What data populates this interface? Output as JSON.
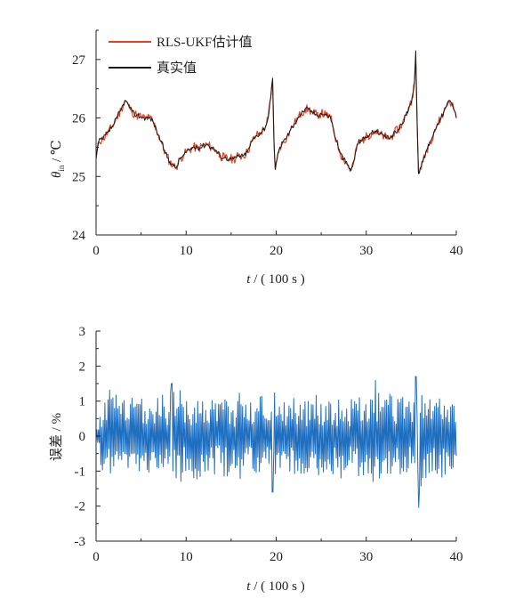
{
  "colors": {
    "estimate": "#e8401c",
    "true_value": "#1a1a1a",
    "error": "#1f6fc0",
    "axis": "#222222"
  },
  "chart_data": [
    {
      "type": "line",
      "ylabel_symbol": "θ",
      "ylabel_subscript": "in",
      "ylabel_unit": " / ℃",
      "xlabel_var": "t",
      "xlabel_unit": " / ( 100 s )",
      "xlim": [
        0,
        40
      ],
      "ylim": [
        24,
        27.5
      ],
      "xticks": [
        0,
        10,
        20,
        30,
        40
      ],
      "yticks": [
        24,
        25,
        26,
        27
      ],
      "legend_position": "top-left",
      "series": [
        {
          "name": "RLS-UKF估计值",
          "color": "#e8401c",
          "x": [
            0,
            0.3,
            0.8,
            1.3,
            1.8,
            2.3,
            2.8,
            3.2,
            3.6,
            4.0,
            4.5,
            5.0,
            5.5,
            6.0,
            6.3,
            6.7,
            7.2,
            7.7,
            8.2,
            8.6,
            8.9,
            9.3,
            9.8,
            10.3,
            10.8,
            11.3,
            11.8,
            12.3,
            12.8,
            13.3,
            13.8,
            14.3,
            14.8,
            15.3,
            15.8,
            16.3,
            16.8,
            17.3,
            17.8,
            18.3,
            18.8,
            19.1,
            19.4,
            19.6,
            19.75,
            19.9,
            20.1,
            20.4,
            20.8,
            21.2,
            21.6,
            22.0,
            22.4,
            22.8,
            23.2,
            23.6,
            24.0,
            24.5,
            25.0,
            25.5,
            26.0,
            26.3,
            26.7,
            27.1,
            27.5,
            27.9,
            28.3,
            28.7,
            29.0,
            29.4,
            29.8,
            30.2,
            30.6,
            31.0,
            31.5,
            32.0,
            32.5,
            33.0,
            33.5,
            34.0,
            34.4,
            34.8,
            35.1,
            35.35,
            35.5,
            35.65,
            35.8,
            36.0,
            36.3,
            36.7,
            37.1,
            37.5,
            37.9,
            38.3,
            38.6,
            38.9,
            39.2,
            39.5,
            39.8,
            40.0
          ],
          "y": [
            25.3,
            25.6,
            25.65,
            25.75,
            25.85,
            26.0,
            26.15,
            26.3,
            26.22,
            26.1,
            26.05,
            26.02,
            26.0,
            26.0,
            25.95,
            25.8,
            25.6,
            25.4,
            25.25,
            25.18,
            25.15,
            25.3,
            25.38,
            25.45,
            25.5,
            25.48,
            25.52,
            25.55,
            25.5,
            25.45,
            25.35,
            25.32,
            25.3,
            25.3,
            25.35,
            25.35,
            25.42,
            25.6,
            25.7,
            25.75,
            25.85,
            26.0,
            26.35,
            26.6,
            25.6,
            25.12,
            25.3,
            25.5,
            25.6,
            25.68,
            25.8,
            25.9,
            26.0,
            26.08,
            26.15,
            26.15,
            26.1,
            26.05,
            26.08,
            26.05,
            26.02,
            25.85,
            25.6,
            25.4,
            25.3,
            25.2,
            25.1,
            25.3,
            25.55,
            25.62,
            25.65,
            25.7,
            25.75,
            25.78,
            25.72,
            25.68,
            25.65,
            25.72,
            25.8,
            25.9,
            26.05,
            26.2,
            26.35,
            26.6,
            27.0,
            25.9,
            25.05,
            25.15,
            25.25,
            25.45,
            25.6,
            25.75,
            25.9,
            26.0,
            26.1,
            26.2,
            26.3,
            26.25,
            26.12,
            26.0
          ]
        },
        {
          "name": "真实值",
          "color": "#1a1a1a",
          "x": [
            0,
            0.3,
            0.8,
            1.3,
            1.8,
            2.3,
            2.8,
            3.2,
            3.6,
            4.0,
            4.5,
            5.0,
            5.5,
            6.0,
            6.3,
            6.7,
            7.2,
            7.7,
            8.2,
            8.6,
            8.9,
            9.3,
            9.8,
            10.3,
            10.8,
            11.3,
            11.8,
            12.3,
            12.8,
            13.3,
            13.8,
            14.3,
            14.8,
            15.3,
            15.8,
            16.3,
            16.8,
            17.3,
            17.8,
            18.3,
            18.8,
            19.1,
            19.4,
            19.6,
            19.75,
            19.9,
            20.1,
            20.4,
            20.8,
            21.2,
            21.6,
            22.0,
            22.4,
            22.8,
            23.2,
            23.6,
            24.0,
            24.5,
            25.0,
            25.5,
            26.0,
            26.3,
            26.7,
            27.1,
            27.5,
            27.9,
            28.3,
            28.7,
            29.0,
            29.4,
            29.8,
            30.2,
            30.6,
            31.0,
            31.5,
            32.0,
            32.5,
            33.0,
            33.5,
            34.0,
            34.4,
            34.8,
            35.1,
            35.35,
            35.5,
            35.65,
            35.8,
            36.0,
            36.3,
            36.7,
            37.1,
            37.5,
            37.9,
            38.3,
            38.6,
            38.9,
            39.2,
            39.5,
            39.8,
            40.0
          ],
          "y": [
            25.3,
            25.6,
            25.65,
            25.75,
            25.85,
            26.0,
            26.15,
            26.3,
            26.22,
            26.1,
            26.05,
            26.02,
            26.0,
            26.0,
            25.95,
            25.8,
            25.6,
            25.4,
            25.25,
            25.18,
            25.15,
            25.3,
            25.38,
            25.45,
            25.5,
            25.48,
            25.52,
            25.55,
            25.5,
            25.45,
            25.35,
            25.32,
            25.3,
            25.3,
            25.35,
            25.35,
            25.42,
            25.6,
            25.7,
            25.75,
            25.85,
            26.0,
            26.35,
            26.68,
            25.6,
            25.12,
            25.3,
            25.5,
            25.6,
            25.68,
            25.8,
            25.9,
            26.0,
            26.08,
            26.15,
            26.15,
            26.1,
            26.05,
            26.08,
            26.05,
            26.02,
            25.85,
            25.6,
            25.4,
            25.3,
            25.2,
            25.1,
            25.3,
            25.55,
            25.62,
            25.65,
            25.7,
            25.75,
            25.78,
            25.72,
            25.68,
            25.65,
            25.72,
            25.8,
            25.9,
            26.05,
            26.2,
            26.35,
            26.6,
            27.15,
            25.9,
            25.05,
            25.15,
            25.25,
            25.45,
            25.6,
            25.75,
            25.9,
            26.0,
            26.1,
            26.2,
            26.3,
            26.25,
            26.12,
            26.0
          ]
        }
      ]
    },
    {
      "type": "line",
      "ylabel": "误差 / %",
      "xlabel_var": "t",
      "xlabel_unit": " / ( 100 s )",
      "xlim": [
        0,
        40
      ],
      "ylim": [
        -3,
        3
      ],
      "xticks": [
        0,
        10,
        20,
        30,
        40
      ],
      "yticks": [
        -3,
        -2,
        -1,
        0,
        1,
        2,
        3
      ],
      "series": [
        {
          "color": "#1f6fc0",
          "x": [
            0.0,
            0.6,
            1.2,
            1.8,
            2.4,
            3.0,
            3.6,
            4.2,
            4.8,
            5.4,
            6.0,
            6.6,
            7.2,
            7.8,
            8.4,
            8.9,
            9.4,
            10.0,
            10.6,
            11.2,
            11.8,
            12.4,
            13.0,
            13.6,
            14.2,
            14.8,
            15.4,
            16.0,
            16.6,
            17.2,
            17.8,
            18.4,
            19.0,
            19.6,
            20.2,
            20.8,
            21.4,
            22.0,
            22.6,
            23.2,
            23.8,
            24.4,
            25.0,
            25.6,
            26.2,
            26.8,
            27.4,
            28.0,
            28.6,
            29.2,
            29.8,
            30.4,
            31.0,
            31.6,
            32.2,
            32.8,
            33.4,
            34.0,
            34.6,
            35.2,
            35.5,
            35.8,
            36.4,
            37.0,
            37.6,
            38.2,
            38.8,
            39.4,
            40.0
          ],
          "y": [
            0.6,
            -0.9,
            1.3,
            -1.4,
            1.1,
            -1.2,
            0.9,
            -1.3,
            1.2,
            -1.0,
            1.1,
            -1.2,
            1.3,
            -1.1,
            1.5,
            -1.2,
            1.4,
            -1.0,
            1.2,
            -1.3,
            1.1,
            -1.4,
            1.2,
            -1.0,
            1.3,
            -1.2,
            1.0,
            -1.3,
            1.2,
            -1.1,
            1.3,
            -1.4,
            1.1,
            -1.6,
            1.3,
            -1.2,
            1.1,
            -1.3,
            1.2,
            -1.1,
            1.0,
            -1.2,
            1.1,
            -1.3,
            1.2,
            -1.1,
            1.3,
            -1.0,
            1.2,
            -1.3,
            1.1,
            -1.2,
            1.6,
            -1.1,
            1.2,
            -1.3,
            1.1,
            -1.2,
            1.3,
            -1.1,
            1.7,
            -2.05,
            1.2,
            -1.3,
            1.1,
            -1.2,
            1.3,
            -1.0,
            0.8
          ]
        }
      ]
    }
  ]
}
